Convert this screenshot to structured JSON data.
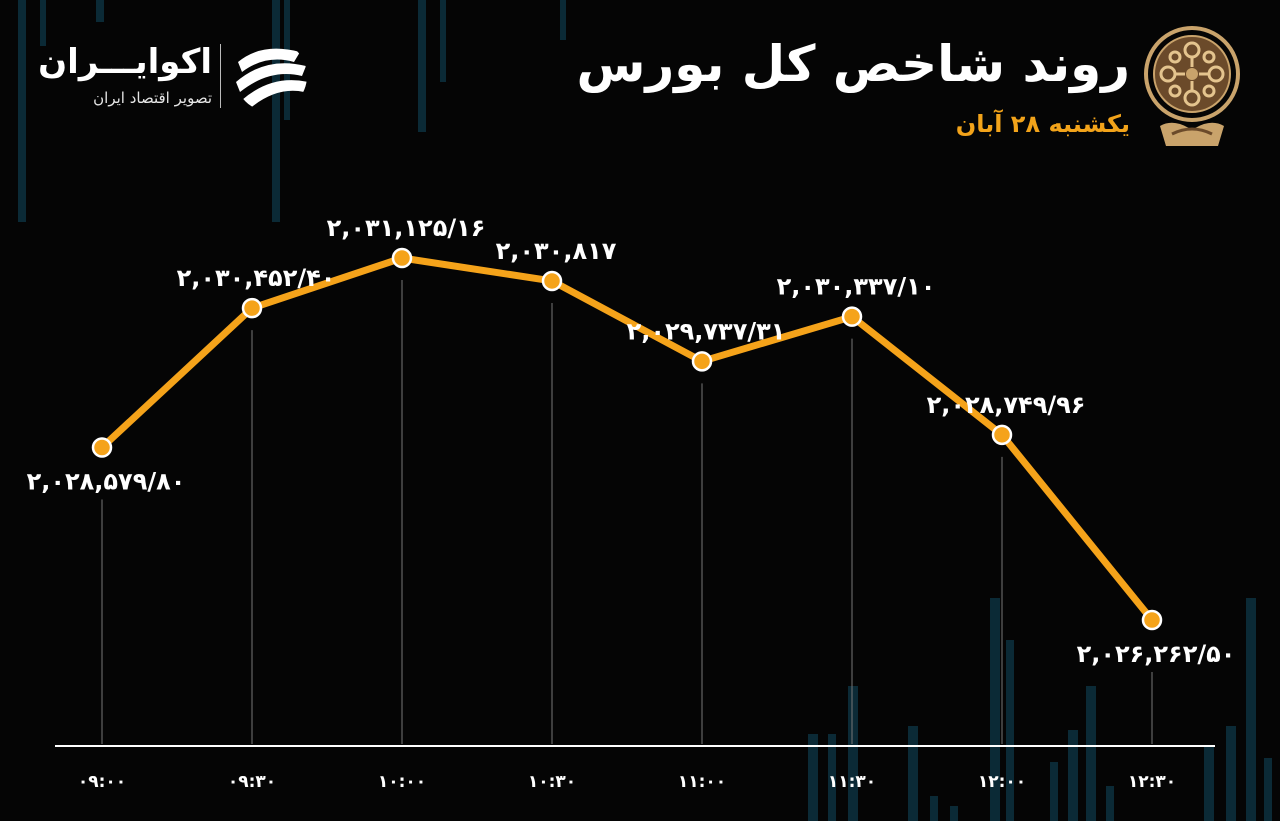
{
  "header": {
    "title": "روند شاخص کل بورس",
    "date": "یکشنبه ۲۸ آبان"
  },
  "brand": {
    "name": "اکوایـــران",
    "tagline": "تصویر اقتصاد ایران"
  },
  "icons": {
    "brand_logo": "ecoiran-stripes-logo",
    "emblem": "tehran-stock-exchange-emblem"
  },
  "colors": {
    "background": "#050505",
    "line": "#f5a31a",
    "point_fill": "#f5a31a",
    "label_text": "#ffffff",
    "accent_text": "#f2a31a",
    "axis": "#ffffff",
    "drop_lines": "#777777",
    "decor_bars": "#0b2a36"
  },
  "chart_data": {
    "type": "line",
    "x": [
      "09:00",
      "09:30",
      "10:00",
      "10:30",
      "11:00",
      "11:30",
      "12:00",
      "12:30"
    ],
    "x_labels": [
      "۰۹:۰۰",
      "۰۹:۳۰",
      "۱۰:۰۰",
      "۱۰:۳۰",
      "۱۱:۰۰",
      "۱۱:۳۰",
      "۱۲:۰۰",
      "۱۲:۳۰"
    ],
    "values": [
      2028579.8,
      2030452.4,
      2031125.16,
      2030817,
      2029737.31,
      2030337.1,
      2028749.96,
      2026262.5
    ],
    "value_labels": [
      "۲,۰۲۸,۵۷۹/۸۰",
      "۲,۰۳۰,۴۵۲/۴۰",
      "۲,۰۳۱,۱۲۵/۱۶",
      "۲,۰۳۰,۸۱۷",
      "۲,۰۲۹,۷۳۷/۳۱",
      "۲,۰۳۰,۳۳۷/۱۰",
      "۲,۰۲۸,۷۴۹/۹۶",
      "۲,۰۲۶,۲۶۲/۵۰"
    ],
    "title": "روند شاخص کل بورس",
    "xlabel": "",
    "ylabel": "",
    "grid": false,
    "legend": "none"
  }
}
